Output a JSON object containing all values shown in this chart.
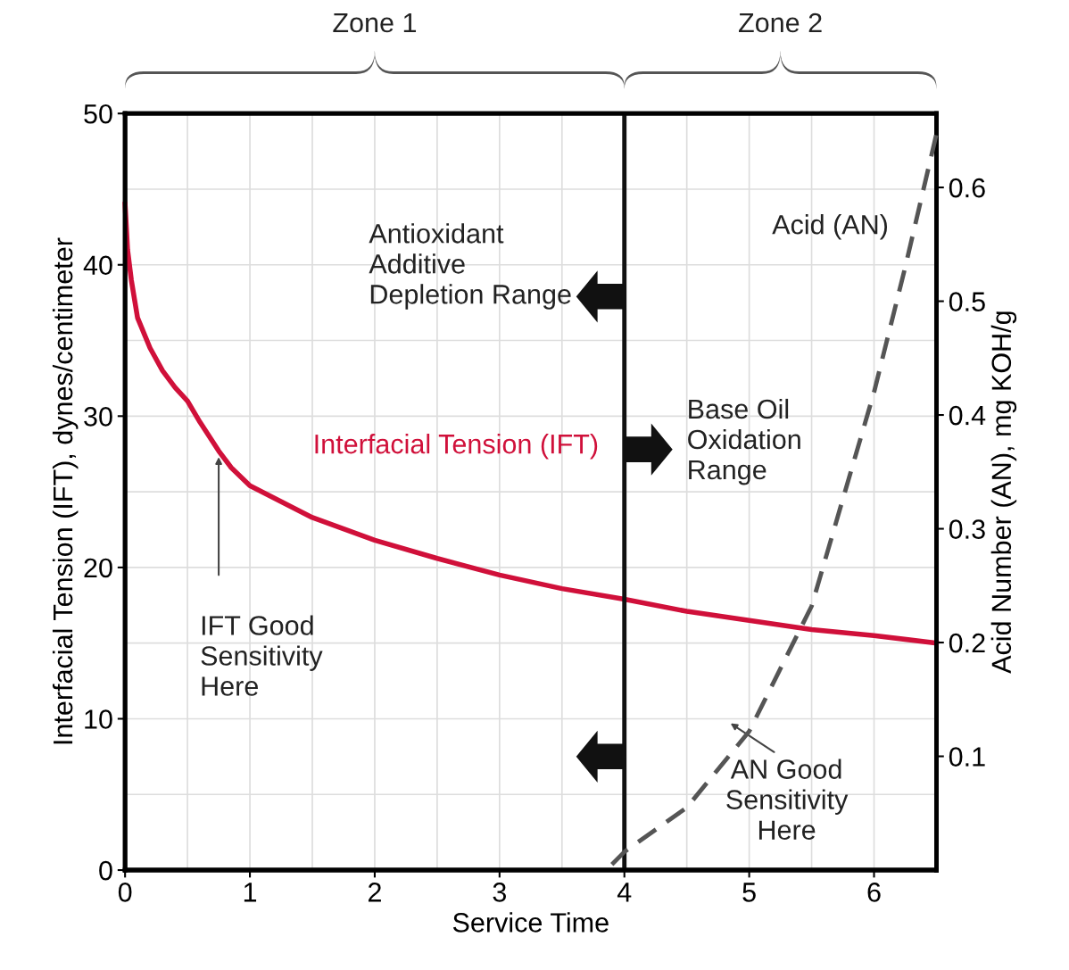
{
  "chart_data": {
    "type": "line",
    "xlabel": "Service Time",
    "ylabel": "Interfacial Tension (IFT), dynes/centimeter",
    "y2label": "Acid Number (AN), mg KOH/g",
    "series": [
      {
        "name": "Interfacial Tension (IFT)",
        "color": "#d0103a",
        "line_style": "solid",
        "x": [
          0,
          0.02,
          0.05,
          0.1,
          0.2,
          0.3,
          0.4,
          0.5,
          0.6,
          0.75,
          0.85,
          1,
          1.5,
          2,
          2.5,
          3,
          3.5,
          4,
          4.5,
          5,
          5.5,
          6,
          6.5
        ],
        "values": [
          44,
          41,
          39,
          36.5,
          34.5,
          33,
          31.9,
          31,
          29.6,
          27.7,
          26.6,
          25.4,
          23.3,
          21.8,
          20.6,
          19.5,
          18.6,
          17.9,
          17.1,
          16.5,
          15.9,
          15.5,
          15.0
        ]
      },
      {
        "name": "Acid (AN)",
        "color": "#555555",
        "line_style": "dashed",
        "axis": "y2",
        "x": [
          3.9,
          4,
          4.5,
          5,
          5.5,
          6,
          6.25,
          6.5
        ],
        "values": [
          0.005,
          0.016,
          0.055,
          0.122,
          0.232,
          0.42,
          0.53,
          0.647
        ]
      }
    ],
    "xlim": [
      0,
      6.5
    ],
    "xticks": [
      0,
      1,
      2,
      3,
      4,
      5,
      6
    ],
    "ylim": [
      0,
      50
    ],
    "yticks": [
      0,
      10,
      20,
      30,
      40,
      50
    ],
    "y2lim": [
      0,
      0.665
    ],
    "y2ticks": [
      0.1,
      0.2,
      0.3,
      0.4,
      0.5,
      0.6
    ],
    "ref_lines": [
      {
        "axis": "x",
        "value": 4,
        "color": "#111111"
      }
    ],
    "annotations": [
      "Zone 1",
      "Zone 2",
      {
        "text": "Antioxidant\nAdditive\nDepletion Range",
        "x": 4,
        "y": 37.9
      },
      {
        "text": "Base Oil\nOxidation\nRange",
        "x": 4,
        "y": 27.8
      },
      "IFT Good\nSensitivity\nHere",
      "AN Good\nSensitivity\nHere"
    ],
    "grid": true,
    "legend": false,
    "marker": "none"
  }
}
